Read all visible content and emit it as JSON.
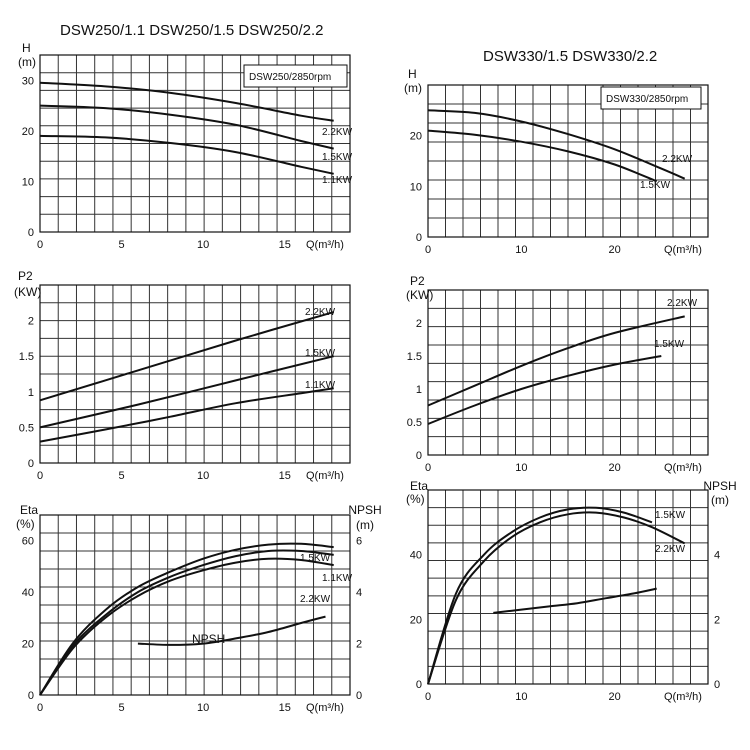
{
  "figure": {
    "left_title": "DSW250/1.1 DSW250/1.5 DSW250/2.2",
    "right_title": "DSW330/1.5 DSW330/2.2"
  },
  "chart_data": [
    {
      "id": "h-250",
      "type": "line",
      "ylabel": "H",
      "yunit": "(m)",
      "xlabel": "Q(m³/h)",
      "xlim": [
        0,
        19
      ],
      "ylim": [
        0,
        35
      ],
      "xticks": [
        0,
        5,
        10,
        15
      ],
      "yticks": [
        0,
        10,
        20,
        30
      ],
      "box_label": "DSW250/2850rpm",
      "series": [
        {
          "name": "2.2KW",
          "x": [
            0,
            4,
            8,
            12,
            16,
            18
          ],
          "y": [
            29.5,
            28.8,
            27.5,
            25.5,
            23,
            22
          ]
        },
        {
          "name": "1.5KW",
          "x": [
            0,
            4,
            8,
            12,
            16,
            18
          ],
          "y": [
            25,
            24.5,
            23.2,
            21.2,
            18,
            16.5
          ]
        },
        {
          "name": "1.1KW",
          "x": [
            0,
            4,
            8,
            12,
            16,
            18
          ],
          "y": [
            19,
            18.7,
            17.6,
            15.8,
            12.9,
            11.5
          ]
        }
      ]
    },
    {
      "id": "p2-250",
      "type": "line",
      "ylabel": "P2",
      "yunit": "(KW)",
      "xlabel": "Q(m³/h)",
      "xlim": [
        0,
        19
      ],
      "ylim": [
        0,
        2.5
      ],
      "xticks": [
        0,
        5,
        10,
        15
      ],
      "yticks": [
        0,
        0.5,
        1,
        1.5,
        2
      ],
      "series": [
        {
          "name": "2.2KW",
          "x": [
            0,
            6,
            12,
            18
          ],
          "y": [
            0.88,
            1.3,
            1.72,
            2.12
          ]
        },
        {
          "name": "1.5KW",
          "x": [
            0,
            6,
            12,
            18
          ],
          "y": [
            0.5,
            0.82,
            1.16,
            1.5
          ]
        },
        {
          "name": "1.1KW",
          "x": [
            0,
            4,
            8,
            12,
            16,
            18
          ],
          "y": [
            0.3,
            0.47,
            0.65,
            0.84,
            0.98,
            1.05
          ]
        }
      ]
    },
    {
      "id": "eta-250",
      "type": "line",
      "ylabel": "Eta",
      "yunit": "(%)",
      "y2label": "NPSH",
      "y2unit": "(m)",
      "xlabel": "Q(m³/h)",
      "xlim": [
        0,
        19
      ],
      "ylim": [
        0,
        70
      ],
      "y2lim": [
        0,
        7
      ],
      "xticks": [
        0,
        5,
        10,
        15
      ],
      "yticks": [
        0,
        20,
        40,
        60
      ],
      "y2ticks": [
        0,
        2,
        4,
        6
      ],
      "npsh_label": "NPSH",
      "series": [
        {
          "name": "1.5KW",
          "x": [
            0,
            2,
            4,
            6,
            8,
            10,
            12,
            14,
            16,
            18
          ],
          "y": [
            0,
            20,
            33,
            42,
            48,
            53,
            56.5,
            58.5,
            58.8,
            57.5
          ]
        },
        {
          "name": "1.1KW",
          "x": [
            0,
            2,
            4,
            6,
            8,
            10,
            12,
            14,
            16,
            18
          ],
          "y": [
            0,
            19,
            31,
            40,
            46,
            50.5,
            54,
            56,
            56,
            54.5
          ]
        },
        {
          "name": "2.2KW",
          "x": [
            0,
            2,
            4,
            6,
            8,
            10,
            12,
            14,
            16,
            18
          ],
          "y": [
            0,
            18,
            30,
            38.5,
            44.5,
            48.5,
            51.5,
            53,
            52.5,
            50.5
          ]
        },
        {
          "name": "NPSH",
          "axis": "y2",
          "x": [
            6,
            8,
            10,
            12,
            14,
            16,
            17.5
          ],
          "y": [
            2,
            1.95,
            2.0,
            2.2,
            2.45,
            2.8,
            3.05
          ]
        }
      ]
    },
    {
      "id": "h-330",
      "type": "line",
      "ylabel": "H",
      "yunit": "(m)",
      "xlabel": "Q(m³/h)",
      "xlim": [
        0,
        30
      ],
      "ylim": [
        0,
        30
      ],
      "xticks": [
        0,
        10,
        20
      ],
      "yticks": [
        0,
        10,
        20
      ],
      "box_label": "DSW330/2850rpm",
      "series": [
        {
          "name": "2.2KW",
          "x": [
            0,
            5,
            10,
            15,
            20,
            25,
            27.5
          ],
          "y": [
            25,
            24.5,
            22.8,
            20.3,
            17.3,
            13.5,
            11.5
          ]
        },
        {
          "name": "1.5KW",
          "x": [
            0,
            5,
            10,
            15,
            20,
            24.5
          ],
          "y": [
            21,
            20.2,
            18.8,
            16.9,
            14.3,
            11
          ]
        }
      ]
    },
    {
      "id": "p2-330",
      "type": "line",
      "ylabel": "P2",
      "yunit": "(KW)",
      "xlabel": "Q(m³/h)",
      "xlim": [
        0,
        30
      ],
      "ylim": [
        0,
        2.5
      ],
      "xticks": [
        0,
        10,
        20
      ],
      "yticks": [
        0,
        0.5,
        1,
        1.5,
        2
      ],
      "series": [
        {
          "name": "2.2KW",
          "x": [
            0,
            5,
            10,
            15,
            20,
            27.5
          ],
          "y": [
            0.75,
            1.05,
            1.35,
            1.62,
            1.85,
            2.1
          ]
        },
        {
          "name": "1.5KW",
          "x": [
            0,
            5,
            10,
            15,
            20,
            25
          ],
          "y": [
            0.47,
            0.75,
            1.0,
            1.2,
            1.37,
            1.5
          ]
        }
      ]
    },
    {
      "id": "eta-330",
      "type": "line",
      "ylabel": "Eta",
      "yunit": "(%)",
      "y2label": "NPSH",
      "y2unit": "(m)",
      "xlabel": "Q(m³/h)",
      "xlim": [
        0,
        30
      ],
      "ylim": [
        0,
        60
      ],
      "y2lim": [
        0,
        6
      ],
      "xticks": [
        0,
        10,
        20
      ],
      "yticks": [
        0,
        20,
        40
      ],
      "y2ticks": [
        0,
        2,
        4
      ],
      "series": [
        {
          "name": "1.5KW",
          "x": [
            0,
            3,
            6,
            9,
            12,
            15,
            18,
            21,
            24
          ],
          "y": [
            0,
            28,
            40,
            47,
            51.5,
            54,
            54.5,
            53,
            50
          ]
        },
        {
          "name": "2.2KW",
          "x": [
            0,
            3,
            6,
            9,
            12,
            15,
            18,
            21,
            24,
            27.5
          ],
          "y": [
            0,
            26,
            38,
            45.5,
            50,
            52.5,
            53,
            51.5,
            48.5,
            43.5
          ]
        },
        {
          "name": "NPSH",
          "axis": "y2",
          "x": [
            7,
            10,
            13,
            16,
            19,
            22,
            24.5
          ],
          "y": [
            2.2,
            2.3,
            2.4,
            2.5,
            2.65,
            2.8,
            2.95
          ]
        }
      ]
    }
  ]
}
